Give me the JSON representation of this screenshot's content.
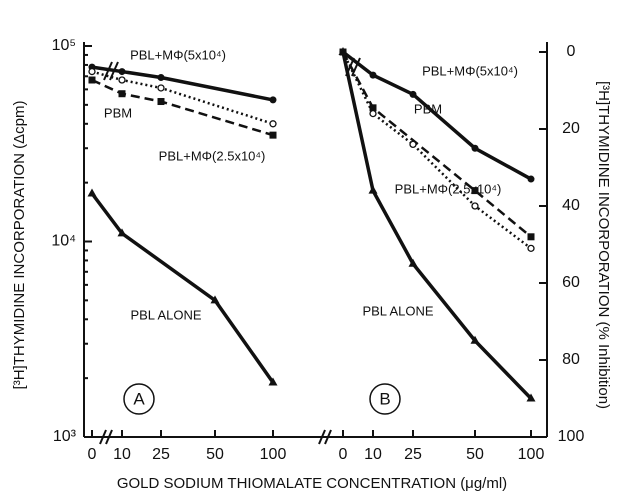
{
  "chart_data": [
    {
      "type": "line",
      "panel": "A",
      "log_y": true,
      "ylim": [
        1000,
        100000
      ],
      "yticks": [
        {
          "value": 1000,
          "label": "10³"
        },
        {
          "value": 10000,
          "label": "10⁴"
        },
        {
          "value": 100000,
          "label": "10⁵"
        }
      ],
      "ylabel": "[³H]THYMIDINE INCORPORATION (Δcpm)",
      "xlabel": "GOLD SODIUM THIOMALATE CONCENTRATION (μg/ml)",
      "x": [
        0,
        10,
        25,
        50,
        100
      ],
      "xticks": [
        0,
        10,
        25,
        50,
        100
      ],
      "series": [
        {
          "name": "PBL+MΦ(5x10⁴)",
          "color": "#111111",
          "dash": "solid",
          "marker": "circle",
          "values": [
            78000,
            74000,
            69000,
            null,
            53000
          ]
        },
        {
          "name": "PBM",
          "color": "#111111",
          "dash": "dashed",
          "marker": "square",
          "values": [
            67000,
            57000,
            52000,
            null,
            35000
          ]
        },
        {
          "name": "PBL+MΦ(2.5x10⁴)",
          "color": "#111111",
          "dash": "dotted",
          "marker": "open-circle",
          "values": [
            74000,
            67000,
            61000,
            null,
            40000
          ]
        },
        {
          "name": "PBL ALONE",
          "color": "#111111",
          "dash": "solid",
          "marker": "triangle",
          "values": [
            17600,
            11000,
            null,
            5000,
            1900
          ]
        }
      ]
    },
    {
      "type": "line",
      "panel": "B",
      "y_inverted": true,
      "ylim": [
        0,
        100
      ],
      "yticks": [
        0,
        20,
        40,
        60,
        80,
        100
      ],
      "ylabel": "[³H]THYMIDINE INCORPORATION (% Inhibition)",
      "x": [
        0,
        10,
        25,
        50,
        100
      ],
      "xticks": [
        0,
        10,
        25,
        50,
        100
      ],
      "series": [
        {
          "name": "PBL+MΦ(5x10⁴)",
          "color": "#111111",
          "dash": "solid",
          "marker": "circle",
          "values": [
            0,
            6,
            11,
            25,
            33
          ]
        },
        {
          "name": "PBM",
          "color": "#111111",
          "dash": "dashed",
          "marker": "square",
          "values": [
            0,
            14.5,
            null,
            36,
            48
          ]
        },
        {
          "name": "PBL+MΦ(2.5x10⁴)",
          "color": "#111111",
          "dash": "dotted",
          "marker": "open-circle",
          "values": [
            0,
            16,
            24,
            40,
            51
          ]
        },
        {
          "name": "PBL ALONE",
          "color": "#111111",
          "dash": "solid",
          "marker": "triangle",
          "values": [
            0,
            36,
            55,
            75,
            90
          ]
        }
      ]
    }
  ]
}
